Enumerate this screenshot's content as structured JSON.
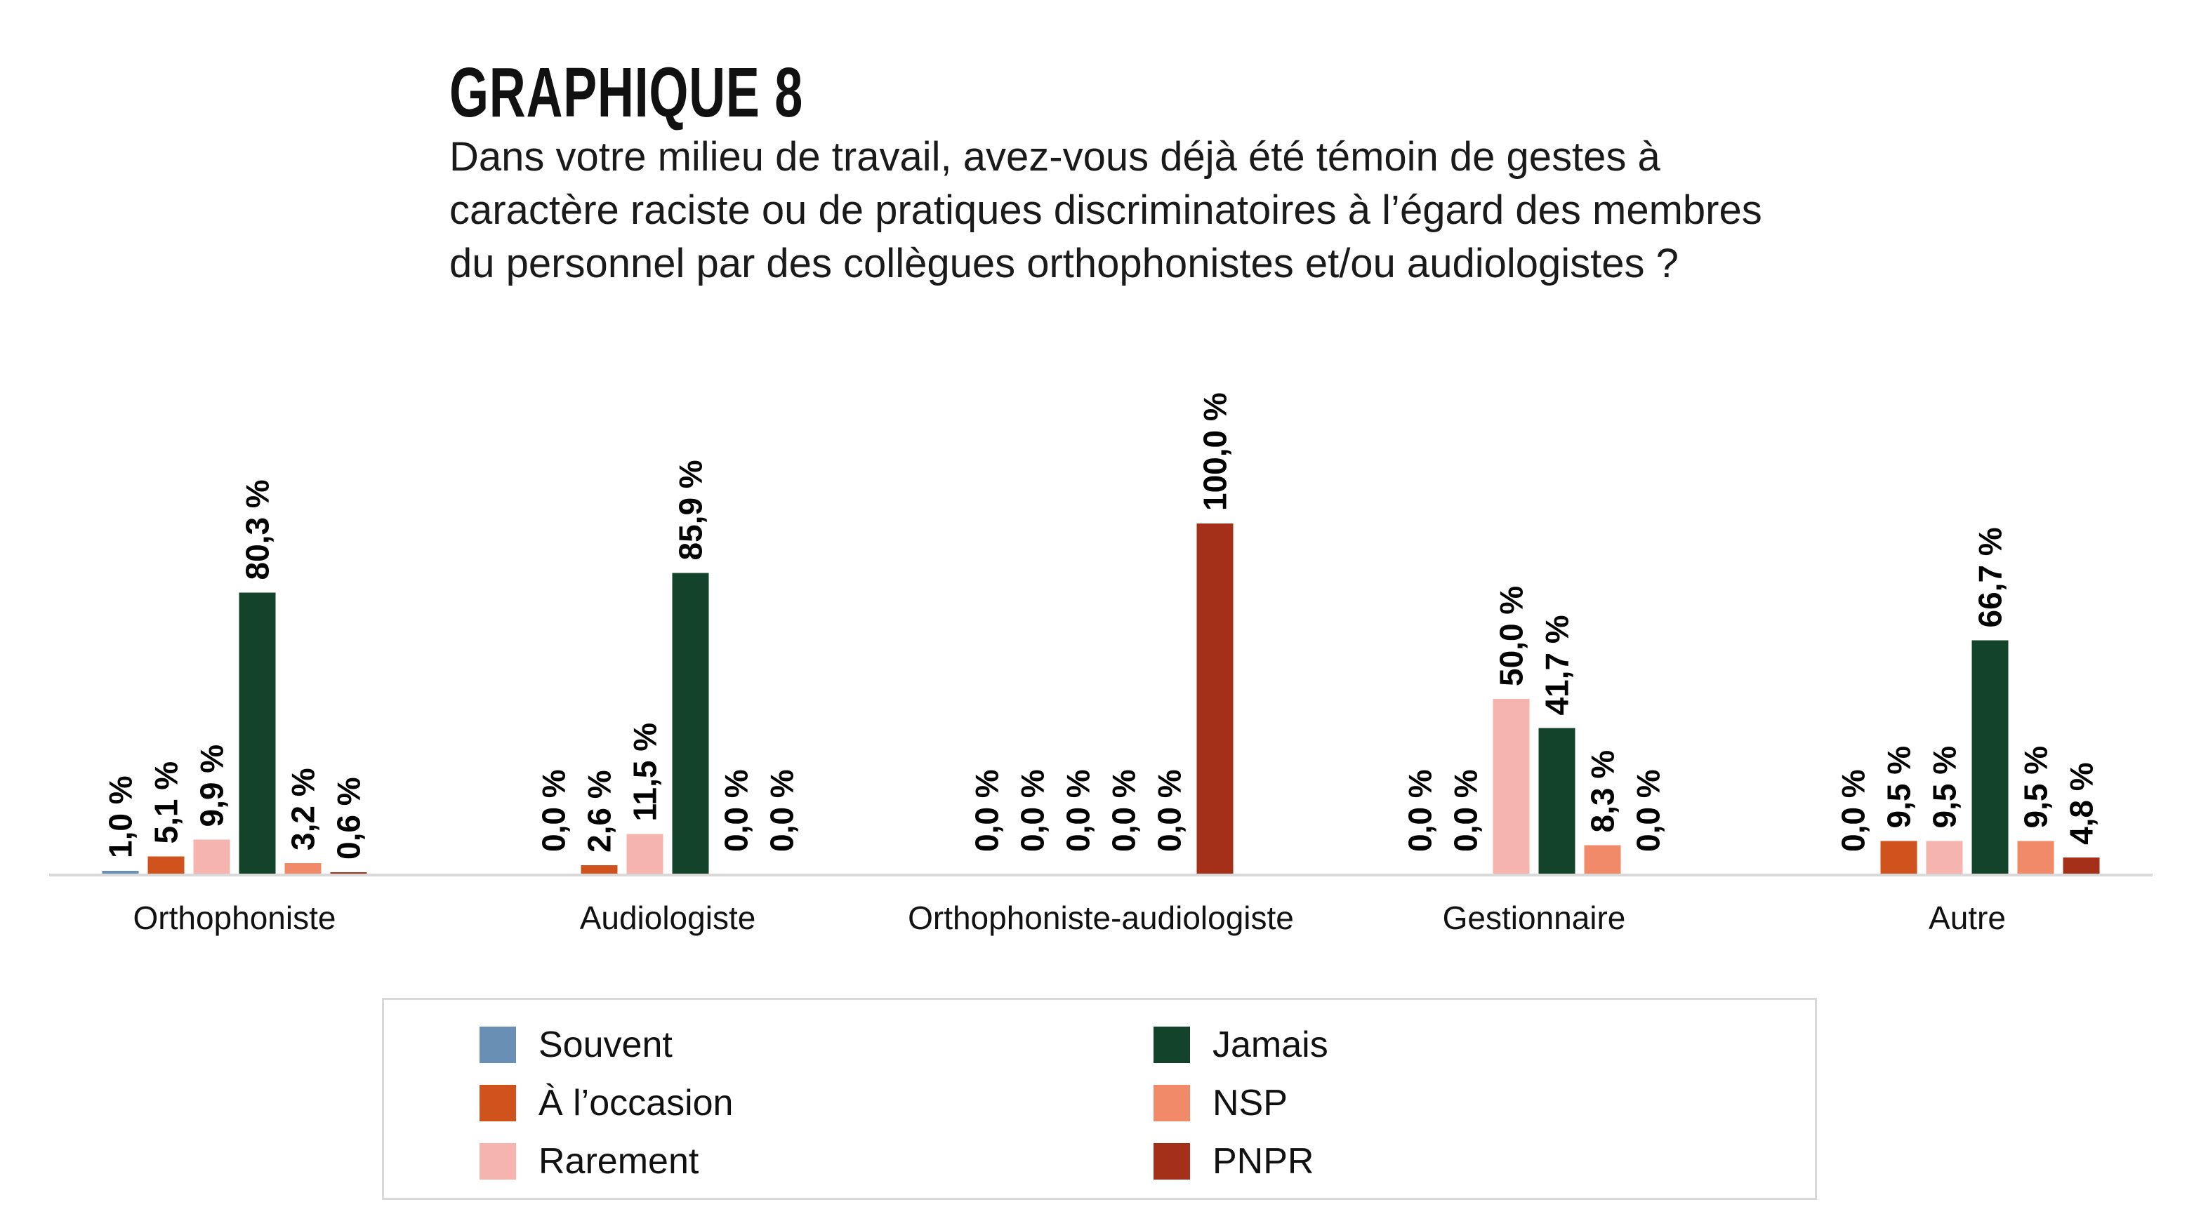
{
  "title": "GRAPHIQUE 8",
  "question": "Dans votre milieu de travail, avez-vous déjà été témoin de gestes à caractère raciste ou de pratiques discriminatoires à l’égard des membres du personnel par des collègues orthophonistes et/ou audiologistes ?",
  "chart_data": {
    "type": "bar",
    "title": "GRAPHIQUE 8",
    "xlabel": "",
    "ylabel": "",
    "ylim": [
      0,
      100
    ],
    "grid": false,
    "legend_position": "bottom",
    "categories": [
      "Orthophoniste",
      "Audiologiste",
      "Orthophoniste-audiologiste",
      "Gestionnaire",
      "Autre"
    ],
    "series": [
      {
        "name": "Souvent",
        "color": "#6a8fb4",
        "values": [
          1.0,
          0.0,
          0.0,
          0.0,
          0.0
        ]
      },
      {
        "name": "À l’occasion",
        "color": "#d0521d",
        "values": [
          5.1,
          2.6,
          0.0,
          0.0,
          9.5
        ]
      },
      {
        "name": "Rarement",
        "color": "#f5b5ae",
        "values": [
          9.9,
          11.5,
          0.0,
          50.0,
          9.5
        ]
      },
      {
        "name": "Jamais",
        "color": "#14432b",
        "values": [
          80.3,
          85.9,
          0.0,
          41.7,
          66.7
        ]
      },
      {
        "name": "NSP",
        "color": "#f08a68",
        "values": [
          3.2,
          0.0,
          0.0,
          8.3,
          9.5
        ]
      },
      {
        "name": "PNPR",
        "color": "#a5301a",
        "values": [
          0.6,
          0.0,
          100.0,
          0.0,
          4.8
        ]
      }
    ],
    "value_suffix": " %"
  }
}
